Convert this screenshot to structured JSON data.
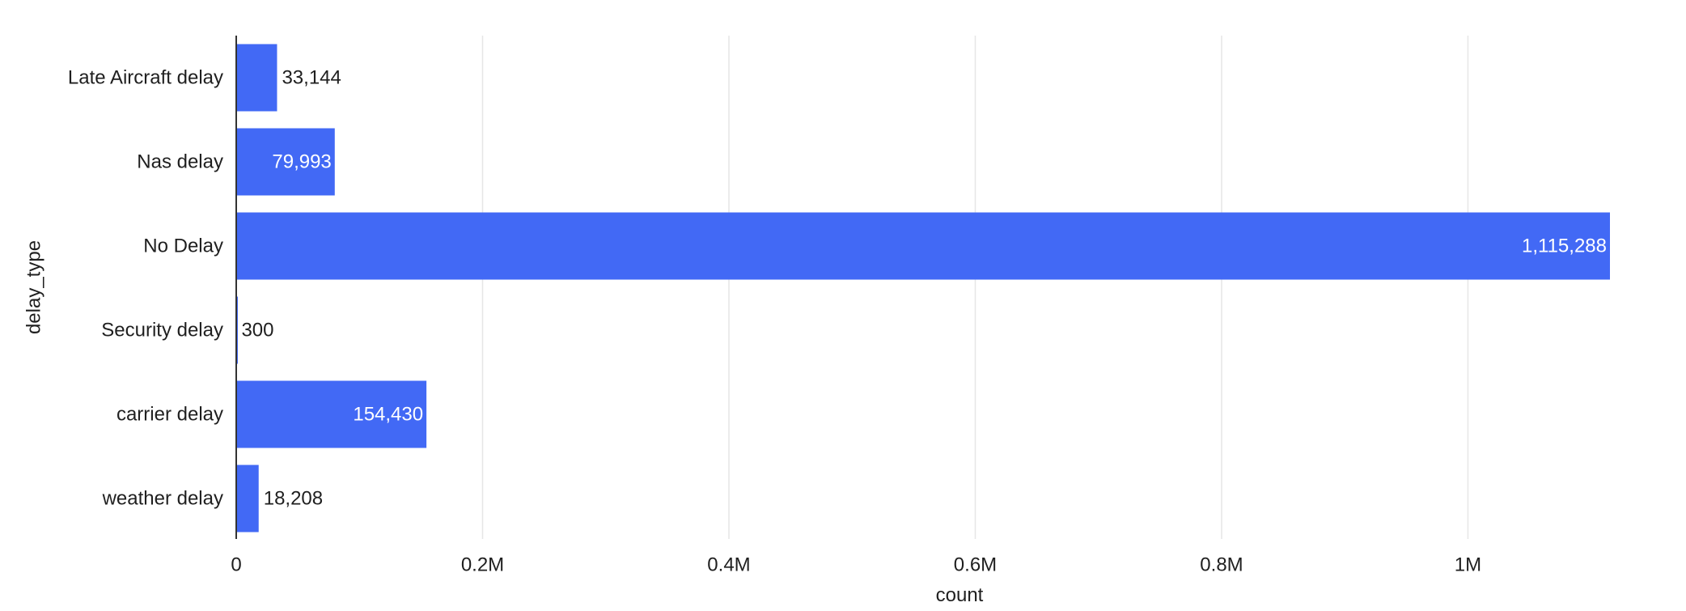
{
  "chart_data": {
    "type": "bar",
    "orientation": "horizontal",
    "title": "",
    "xlabel": "count",
    "ylabel": "delay_type",
    "categories": [
      "Late Aircraft delay",
      "Nas delay",
      "No Delay",
      "Security delay",
      "carrier delay",
      "weather delay"
    ],
    "values": [
      33144,
      79993,
      1115288,
      300,
      154430,
      18208
    ],
    "value_labels": [
      "33,144",
      "79,993",
      "1,115,288",
      "300",
      "154,430",
      "18,208"
    ],
    "xlim": [
      0,
      1115288
    ],
    "xticks": [
      0,
      200000,
      400000,
      600000,
      800000,
      1000000
    ],
    "xtick_labels": [
      "0",
      "0.2M",
      "0.4M",
      "0.6M",
      "0.8M",
      "1M"
    ],
    "grid": "vertical",
    "legend": "none",
    "bar_color": "#4269F5",
    "gridline_color": "#E6E6E6",
    "axis_color": "#333333",
    "text_color": "#1F1F1F",
    "inside_label_color": "#FFFFFF"
  }
}
